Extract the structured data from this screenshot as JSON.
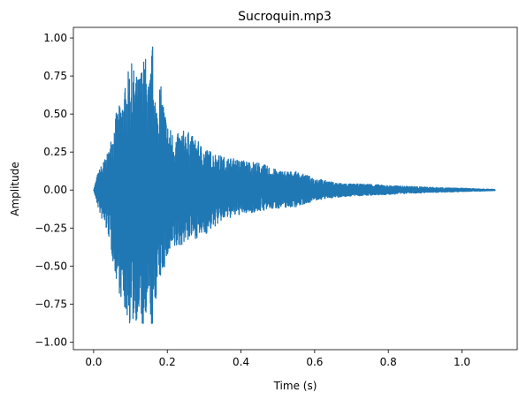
{
  "chart_data": {
    "type": "line",
    "title": "Sucroquin.mp3",
    "xlabel": "Time (s)",
    "ylabel": "Amplitude",
    "xlim": [
      -0.055,
      1.15
    ],
    "ylim": [
      -1.05,
      1.07
    ],
    "xticks": [
      0.0,
      0.2,
      0.4,
      0.6,
      0.8,
      1.0
    ],
    "xtick_labels": [
      "0.0",
      "0.2",
      "0.4",
      "0.6",
      "0.8",
      "1.0"
    ],
    "yticks": [
      -1.0,
      -0.75,
      -0.5,
      -0.25,
      0.0,
      0.25,
      0.5,
      0.75,
      1.0
    ],
    "ytick_labels": [
      "−1.00",
      "−0.75",
      "−0.50",
      "−0.25",
      "0.00",
      "0.25",
      "0.50",
      "0.75",
      "1.00"
    ],
    "grid": false,
    "line_color": "#1f77b4",
    "series": [
      {
        "duration": 1.09,
        "envelope": {
          "t": [
            0.0,
            0.01,
            0.02,
            0.04,
            0.06,
            0.08,
            0.1,
            0.12,
            0.14,
            0.15,
            0.16,
            0.17,
            0.18,
            0.2,
            0.22,
            0.25,
            0.3,
            0.35,
            0.4,
            0.45,
            0.5,
            0.55,
            0.6,
            0.65,
            0.7,
            0.75,
            0.8,
            0.85,
            0.9,
            0.95,
            1.0,
            1.05,
            1.09
          ],
          "upper": [
            0.0,
            0.1,
            0.16,
            0.25,
            0.5,
            0.62,
            0.85,
            0.74,
            0.9,
            0.68,
            0.97,
            0.55,
            0.72,
            0.44,
            0.36,
            0.4,
            0.28,
            0.22,
            0.2,
            0.18,
            0.13,
            0.12,
            0.08,
            0.05,
            0.04,
            0.04,
            0.03,
            0.025,
            0.02,
            0.015,
            0.012,
            0.008,
            0.004
          ],
          "lower": [
            0.0,
            -0.1,
            -0.18,
            -0.3,
            -0.58,
            -0.78,
            -0.9,
            -0.85,
            -0.96,
            -0.78,
            -0.95,
            -0.7,
            -0.6,
            -0.46,
            -0.4,
            -0.34,
            -0.3,
            -0.2,
            -0.16,
            -0.14,
            -0.12,
            -0.11,
            -0.07,
            -0.05,
            -0.04,
            -0.035,
            -0.03,
            -0.022,
            -0.018,
            -0.014,
            -0.01,
            -0.007,
            -0.004
          ]
        }
      }
    ]
  }
}
